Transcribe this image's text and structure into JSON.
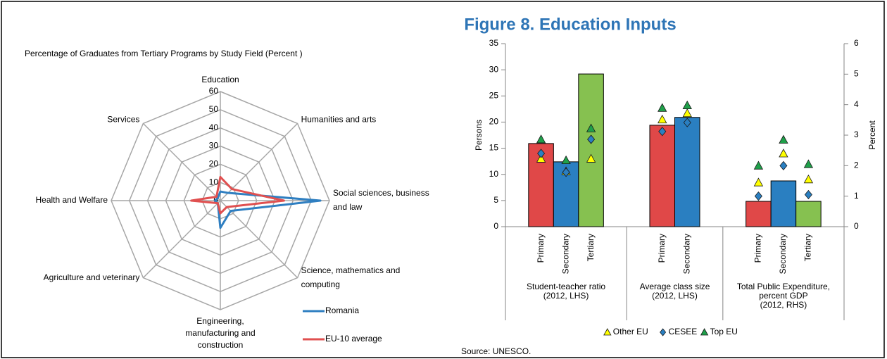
{
  "title": "Figure 8. Education Inputs",
  "source": "Source: UNESCO.",
  "chart_data": [
    {
      "type": "radar",
      "title": "Percentage of Graduates from Tertiary Programs by Study Field (Percent )",
      "categories": [
        [
          "Education"
        ],
        [
          "Humanities and arts"
        ],
        [
          "Social sciences, business",
          "and law"
        ],
        [
          "Science, mathematics and",
          "computing"
        ],
        [
          "Engineering,",
          "manufacturing and",
          "construction"
        ],
        [
          "Agriculture and veterinary"
        ],
        [
          "Health and Welfare"
        ],
        [
          "Services"
        ]
      ],
      "series": [
        {
          "name": "Romania",
          "color": "#2f7fc1",
          "values": [
            5,
            6,
            55,
            8,
            15,
            2,
            3,
            2
          ]
        },
        {
          "name": "EU-10 average",
          "color": "#e05050",
          "values": [
            13,
            9,
            35,
            5,
            7,
            2,
            16,
            3
          ]
        }
      ],
      "rlim": [
        0,
        60
      ],
      "rticks": [
        0,
        10,
        20,
        30,
        40,
        50,
        60
      ],
      "grid": true,
      "legend": "lower right"
    },
    {
      "type": "bar",
      "ylabel": "Persons",
      "y2label": "Percent",
      "ylim": [
        0,
        35
      ],
      "yticks": [
        0,
        5,
        10,
        15,
        20,
        25,
        30,
        35
      ],
      "y2lim": [
        0,
        6
      ],
      "y2ticks": [
        0,
        1,
        2,
        3,
        4,
        5,
        6
      ],
      "bar_colors": [
        "#e04848",
        "#2a7fc1",
        "#86c150"
      ],
      "series": [
        {
          "name": "Other EU",
          "color": "#ffff00",
          "marker": "triangle"
        },
        {
          "name": "CESEE",
          "color": "#2a7fc1",
          "marker": "diamond"
        },
        {
          "name": "Top EU",
          "color": "#1fa04a",
          "marker": "triangle"
        }
      ],
      "groups": [
        {
          "label": [
            "Student-teacher ratio",
            "(2012, LHS)"
          ],
          "axis": "y",
          "categories": [
            "Primary",
            "Secondary",
            "Tertiary"
          ],
          "values": [
            15.9,
            12.4,
            29.2
          ],
          "series_values": [
            [
              13,
              10.6,
              13
            ],
            [
              14,
              10.4,
              16.7
            ],
            [
              16.7,
              12.7,
              18.8
            ]
          ]
        },
        {
          "label": [
            "Average class size",
            "(2012, LHS)"
          ],
          "axis": "y",
          "categories": [
            "Primary",
            "Secondary"
          ],
          "values": [
            19.4,
            20.9
          ],
          "series_values": [
            [
              20.5,
              21.7
            ],
            [
              18.2,
              19.9
            ],
            [
              22.7,
              23.2
            ]
          ]
        },
        {
          "label": [
            "Total Public Expenditure,",
            "percent GDP",
            "(2012, RHS)"
          ],
          "axis": "y2",
          "categories": [
            "Primary",
            "Secondary",
            "Tertiary"
          ],
          "values": [
            0.83,
            1.5,
            0.83
          ],
          "series_values": [
            [
              1.45,
              2.4,
              1.55
            ],
            [
              1.0,
              2.0,
              1.05
            ],
            [
              2.0,
              2.85,
              2.05
            ]
          ]
        }
      ],
      "legend": "bottom"
    }
  ]
}
